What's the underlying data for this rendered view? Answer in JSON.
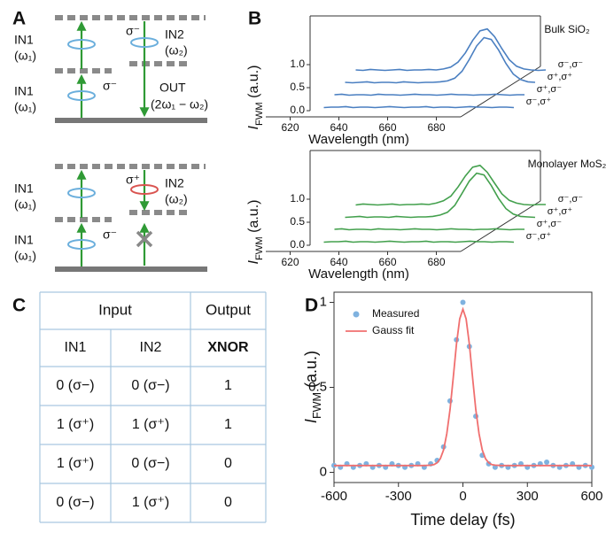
{
  "panel_labels": [
    "A",
    "B",
    "C",
    "D"
  ],
  "diagram": {
    "top": [
      "IN1",
      "(ω₁)",
      "σ⁻",
      "IN2",
      "(ω₂)",
      "IN1",
      "(ω₁)",
      "σ⁻",
      "OUT",
      "(2ω₁ − ω₂)"
    ],
    "bottom": [
      "IN1",
      "(ω₁)",
      "σ⁺",
      "IN2",
      "(ω₂)",
      "IN1",
      "(ω₁)",
      "σ⁻"
    ]
  },
  "table": {
    "header": [
      "Input",
      "Output"
    ],
    "rows": [
      [
        "IN1",
        "IN2",
        "XNOR"
      ],
      [
        "0 (σ−)",
        "0 (σ−)",
        "1"
      ],
      [
        "1 (σ⁺)",
        "1 (σ⁺)",
        "1"
      ],
      [
        "1 (σ⁺)",
        "0 (σ−)",
        "0"
      ],
      [
        "0 (σ−)",
        "1 (σ⁺)",
        "0"
      ]
    ]
  },
  "chart_data": [
    {
      "type": "waterfall",
      "title": "Bulk SiO₂",
      "xlabel": "Wavelength (nm)",
      "ylabel": [
        "I",
        "FWM",
        " (a.u.)"
      ],
      "x": [
        612,
        615,
        618,
        621,
        624,
        627,
        630,
        633,
        636,
        639,
        642,
        645,
        648,
        651,
        654,
        657,
        660,
        663,
        666,
        669,
        672,
        675,
        678,
        681,
        684,
        687,
        690
      ],
      "xlim": [
        610,
        690
      ],
      "xticks": [
        620,
        640,
        660,
        680
      ],
      "ylim": [
        0,
        1
      ],
      "yticks": [
        {
          "value": 0,
          "label": "0.0"
        },
        {
          "value": 0.5,
          "label": "0.5"
        },
        {
          "value": 1,
          "label": "1.0"
        }
      ],
      "color": "#4a7fc1",
      "series": [
        {
          "name": "σ⁻,σ⁻",
          "values": [
            0.02,
            0.01,
            0.03,
            0.02,
            0.01,
            0.02,
            0.03,
            0.01,
            0.02,
            0.02,
            0.03,
            0.02,
            0.04,
            0.08,
            0.19,
            0.39,
            0.66,
            0.87,
            0.91,
            0.74,
            0.48,
            0.24,
            0.1,
            0.04,
            0.02,
            0.01,
            0.02
          ]
        },
        {
          "name": "σ⁺,σ⁺",
          "values": [
            0.02,
            0.01,
            0.02,
            0.03,
            0.01,
            0.02,
            0.02,
            0.01,
            0.03,
            0.02,
            0.01,
            0.02,
            0.02,
            0.03,
            0.05,
            0.11,
            0.26,
            0.52,
            0.81,
            0.99,
            0.95,
            0.72,
            0.43,
            0.2,
            0.08,
            0.03,
            0.02
          ]
        },
        {
          "name": "σ⁺,σ⁻",
          "values": [
            0.02,
            0.03,
            0.01,
            0.02,
            0.02,
            0.01,
            0.03,
            0.02,
            0.02,
            0.01,
            0.02,
            0.03,
            0.02,
            0.02,
            0.01,
            0.02,
            0.03,
            0.02,
            0.02,
            0.01,
            0.02,
            0.02,
            0.03,
            0.02,
            0.01,
            0.02,
            0.02
          ]
        },
        {
          "name": "σ⁻,σ⁺",
          "values": [
            0.01,
            0.02,
            0.02,
            0.03,
            0.01,
            0.02,
            0.02,
            0.01,
            0.02,
            0.03,
            0.02,
            0.01,
            0.02,
            0.02,
            0.03,
            0.01,
            0.02,
            0.02,
            0.01,
            0.02,
            0.03,
            0.02,
            0.02,
            0.01,
            0.02,
            0.02,
            0.01
          ]
        }
      ]
    },
    {
      "type": "waterfall",
      "title": "Monolayer MoS₂",
      "xlabel": "Wavelength (nm)",
      "ylabel": [
        "I",
        "FWM",
        " (a.u.)"
      ],
      "x": [
        612,
        615,
        618,
        621,
        624,
        627,
        630,
        633,
        636,
        639,
        642,
        645,
        648,
        651,
        654,
        657,
        660,
        663,
        666,
        669,
        672,
        675,
        678,
        681,
        684,
        687,
        690
      ],
      "xlim": [
        610,
        690
      ],
      "xticks": [
        620,
        640,
        660,
        680
      ],
      "ylim": [
        0,
        1
      ],
      "yticks": [
        {
          "value": 0,
          "label": "0.0"
        },
        {
          "value": 0.5,
          "label": "0.5"
        },
        {
          "value": 1,
          "label": "1.0"
        }
      ],
      "color": "#43a04d",
      "series": [
        {
          "name": "σ⁻,σ⁻",
          "values": [
            0.01,
            0.03,
            0.02,
            0.01,
            0.02,
            0.03,
            0.01,
            0.02,
            0.02,
            0.03,
            0.02,
            0.05,
            0.1,
            0.2,
            0.4,
            0.64,
            0.83,
            0.87,
            0.72,
            0.48,
            0.25,
            0.11,
            0.05,
            0.02,
            0.01,
            0.02,
            0.02
          ]
        },
        {
          "name": "σ⁺,σ⁺",
          "values": [
            0.01,
            0.02,
            0.03,
            0.01,
            0.02,
            0.02,
            0.01,
            0.03,
            0.02,
            0.01,
            0.02,
            0.02,
            0.03,
            0.06,
            0.12,
            0.27,
            0.53,
            0.8,
            0.97,
            0.93,
            0.7,
            0.42,
            0.2,
            0.08,
            0.03,
            0.02,
            0.01
          ]
        },
        {
          "name": "σ⁺,σ⁻",
          "values": [
            0.02,
            0.03,
            0.01,
            0.02,
            0.02,
            0.01,
            0.03,
            0.02,
            0.02,
            0.01,
            0.02,
            0.03,
            0.02,
            0.02,
            0.01,
            0.02,
            0.03,
            0.02,
            0.02,
            0.01,
            0.02,
            0.02,
            0.03,
            0.02,
            0.01,
            0.02,
            0.02
          ]
        },
        {
          "name": "σ⁻,σ⁺",
          "values": [
            0.01,
            0.02,
            0.02,
            0.03,
            0.01,
            0.02,
            0.02,
            0.01,
            0.02,
            0.03,
            0.02,
            0.01,
            0.02,
            0.02,
            0.03,
            0.01,
            0.02,
            0.02,
            0.01,
            0.02,
            0.03,
            0.02,
            0.02,
            0.01,
            0.02,
            0.02,
            0.01
          ]
        }
      ]
    },
    {
      "type": "scatter",
      "xlabel": "Time delay (fs)",
      "ylabel": [
        "I",
        "FWM",
        " (a.u.)"
      ],
      "xlim": [
        -600,
        600
      ],
      "xticks": [
        -600,
        -300,
        0,
        300,
        600
      ],
      "ylim": [
        -0.06,
        1.06
      ],
      "yticks": [
        0,
        0.5,
        1
      ],
      "series": [
        {
          "name": "Measured",
          "color": "#7fb2df",
          "marker": "circle",
          "x": [
            -600,
            -570,
            -540,
            -510,
            -480,
            -450,
            -420,
            -390,
            -360,
            -330,
            -300,
            -270,
            -240,
            -210,
            -180,
            -150,
            -120,
            -90,
            -60,
            -30,
            0,
            30,
            60,
            90,
            120,
            150,
            180,
            210,
            240,
            270,
            300,
            330,
            360,
            390,
            420,
            450,
            480,
            510,
            540,
            570,
            600
          ],
          "values": [
            0.04,
            0.03,
            0.05,
            0.03,
            0.04,
            0.05,
            0.03,
            0.04,
            0.03,
            0.05,
            0.04,
            0.03,
            0.04,
            0.05,
            0.03,
            0.05,
            0.07,
            0.15,
            0.42,
            0.78,
            1.0,
            0.74,
            0.33,
            0.1,
            0.05,
            0.03,
            0.04,
            0.03,
            0.04,
            0.05,
            0.03,
            0.04,
            0.05,
            0.06,
            0.04,
            0.03,
            0.04,
            0.05,
            0.03,
            0.04,
            0.03
          ]
        },
        {
          "name": "Gauss fit",
          "color": "#f06f6f",
          "marker": "line",
          "x": [
            -600,
            -300,
            -210,
            -180,
            -150,
            -135,
            -120,
            -105,
            -90,
            -75,
            -60,
            -45,
            -30,
            -15,
            0,
            15,
            30,
            45,
            60,
            75,
            90,
            105,
            120,
            135,
            150,
            180,
            210,
            300,
            600
          ],
          "values": [
            0.04,
            0.04,
            0.04,
            0.04,
            0.042,
            0.045,
            0.056,
            0.08,
            0.132,
            0.227,
            0.371,
            0.558,
            0.753,
            0.903,
            0.96,
            0.903,
            0.753,
            0.558,
            0.371,
            0.227,
            0.132,
            0.08,
            0.056,
            0.045,
            0.042,
            0.04,
            0.04,
            0.04,
            0.04
          ]
        }
      ]
    }
  ]
}
